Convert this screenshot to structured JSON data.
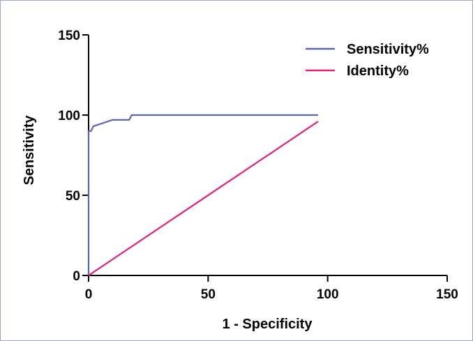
{
  "chart_data": {
    "type": "line",
    "title": "",
    "xlabel": "1 - Specificity",
    "ylabel": "Sensitivity",
    "xlim": [
      0,
      150
    ],
    "ylim": [
      0,
      150
    ],
    "xticks": [
      0,
      50,
      100,
      150
    ],
    "yticks": [
      0,
      50,
      100,
      150
    ],
    "grid": false,
    "legend": "top-right",
    "series": [
      {
        "name": "Sensitivity%",
        "color": "#5b63b5",
        "points": [
          [
            0,
            0
          ],
          [
            0,
            90
          ],
          [
            1,
            90
          ],
          [
            2,
            93
          ],
          [
            4,
            94
          ],
          [
            6,
            95
          ],
          [
            8,
            96
          ],
          [
            10,
            97
          ],
          [
            17,
            97
          ],
          [
            18,
            100
          ],
          [
            96,
            100
          ]
        ]
      },
      {
        "name": "Identity%",
        "color": "#e0207a",
        "points": [
          [
            0,
            0
          ],
          [
            96,
            96
          ]
        ]
      }
    ]
  }
}
